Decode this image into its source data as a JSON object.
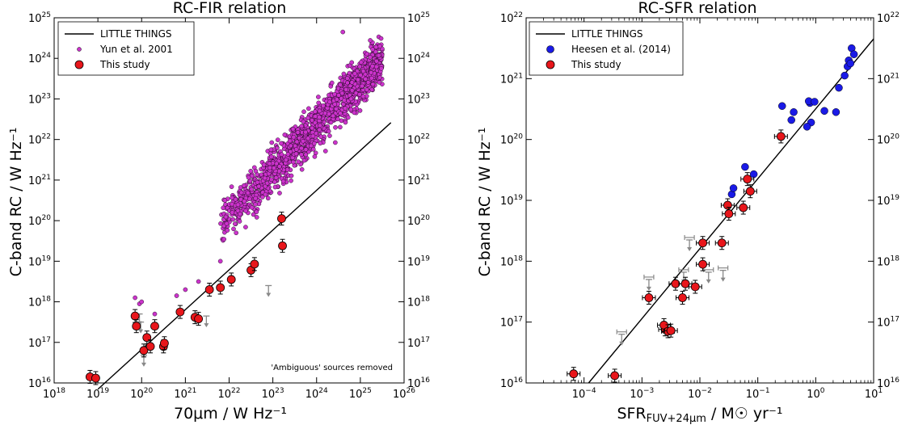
{
  "chart_data": [
    {
      "type": "scatter",
      "title": "RC-FIR relation",
      "xlabel": "70μm  /  W Hz⁻¹",
      "ylabel": "C-band RC  /  W Hz⁻¹",
      "xscale": "log",
      "yscale": "log",
      "xlim": [
        1e+18,
        1e+26
      ],
      "ylim": [
        1e+16,
        1e+25
      ],
      "x_tick_exponents": [
        18,
        19,
        20,
        21,
        22,
        23,
        24,
        25,
        26
      ],
      "y_tick_exponents": [
        16,
        17,
        18,
        19,
        20,
        21,
        22,
        23,
        24,
        25
      ],
      "legend_position": "top-left",
      "legend": [
        {
          "label": "LITTLE THINGS",
          "marker": "line",
          "color": "#000000"
        },
        {
          "label": "Yun et al. 2001",
          "marker": "small-dot",
          "color": "#cc33cc"
        },
        {
          "label": "This study",
          "marker": "dot",
          "color": "#e8161b"
        }
      ],
      "annotation": "'Ambiguous' sources removed",
      "fit_line": {
        "label": "LITTLE THINGS",
        "x": [
          1e+19,
          5e+25
        ],
        "y": [
          7000000000000000.0,
          2.6e+22
        ]
      },
      "yun_cloud": {
        "label": "Yun et al. 2001",
        "color": "#cc33cc",
        "x_log_range": [
          21.8,
          25.5
        ],
        "outliers": [
          [
            19.85,
            18.1
          ],
          [
            19.95,
            17.95
          ],
          [
            20.0,
            18.0
          ],
          [
            20.3,
            17.7
          ],
          [
            20.8,
            18.15
          ],
          [
            21.0,
            18.3
          ],
          [
            21.3,
            18.5
          ],
          [
            21.8,
            19.0
          ],
          [
            22.6,
            20.4
          ],
          [
            23.3,
            21.5
          ],
          [
            24.6,
            24.65
          ]
        ]
      },
      "series": [
        {
          "name": "This study",
          "color": "#e8161b",
          "points": [
            [
              18.82,
              16.15
            ],
            [
              18.95,
              16.12
            ],
            [
              19.85,
              17.65
            ],
            [
              19.88,
              17.4
            ],
            [
              20.05,
              16.8
            ],
            [
              20.12,
              17.12
            ],
            [
              20.2,
              16.9
            ],
            [
              20.3,
              17.4
            ],
            [
              20.5,
              16.9
            ],
            [
              20.52,
              16.98
            ],
            [
              20.88,
              17.75
            ],
            [
              21.22,
              17.62
            ],
            [
              21.3,
              17.58
            ],
            [
              21.55,
              18.3
            ],
            [
              21.8,
              18.35
            ],
            [
              22.05,
              18.55
            ],
            [
              22.5,
              18.78
            ],
            [
              22.58,
              18.93
            ],
            [
              23.2,
              20.05
            ],
            [
              23.22,
              19.38
            ]
          ]
        }
      ],
      "upper_limits": [
        [
          19.95,
          17.7
        ],
        [
          19.98,
          17.5
        ],
        [
          20.05,
          16.68
        ],
        [
          21.48,
          17.65
        ],
        [
          22.9,
          18.4
        ]
      ]
    },
    {
      "type": "scatter",
      "title": "RC-SFR relation",
      "xlabel": "SFR FUV+24μm  /  M☉ yr⁻¹",
      "ylabel": "C-band RC  /  W Hz⁻¹",
      "xscale": "log",
      "yscale": "log",
      "xlim": [
        1e-05,
        10
      ],
      "ylim": [
        1e+16,
        1e+22
      ],
      "x_tick_exponents": [
        -4,
        -3,
        -2,
        -1,
        0,
        1
      ],
      "y_tick_exponents": [
        16,
        17,
        18,
        19,
        20,
        21,
        22
      ],
      "legend_position": "top-left",
      "legend": [
        {
          "label": "LITTLE THINGS",
          "marker": "line",
          "color": "#000000"
        },
        {
          "label": "Heesen et al. (2014)",
          "marker": "dot",
          "color": "#1a1ae6"
        },
        {
          "label": "This study",
          "marker": "dot",
          "color": "#e8161b"
        }
      ],
      "fit_line": {
        "label": "LITTLE THINGS",
        "x": [
          0.00012,
          10
        ],
        "y": [
          1e+16,
          4.5e+21
        ]
      },
      "series": [
        {
          "name": "Heesen et al. (2014)",
          "color": "#1a1ae6",
          "points": [
            [
              -1.45,
              19.1
            ],
            [
              -1.42,
              19.2
            ],
            [
              -1.22,
              19.55
            ],
            [
              -1.07,
              19.43
            ],
            [
              -0.58,
              20.55
            ],
            [
              -0.38,
              20.45
            ],
            [
              -0.42,
              20.32
            ],
            [
              -0.08,
              20.28
            ],
            [
              -0.1,
              20.6
            ],
            [
              -0.12,
              20.63
            ],
            [
              -0.15,
              20.21
            ],
            [
              -0.02,
              20.62
            ],
            [
              0.15,
              20.47
            ],
            [
              0.35,
              20.45
            ],
            [
              0.4,
              20.85
            ],
            [
              0.5,
              21.05
            ],
            [
              0.55,
              21.2
            ],
            [
              0.57,
              21.3
            ],
            [
              0.6,
              21.25
            ],
            [
              0.62,
              21.5
            ],
            [
              0.66,
              21.4
            ]
          ]
        }
      ],
      "red_points": [
        [
          -4.18,
          16.15
        ],
        [
          -3.47,
          16.12
        ],
        [
          -2.88,
          17.4
        ],
        [
          -2.6,
          16.88
        ],
        [
          -2.62,
          16.95
        ],
        [
          -2.55,
          16.85
        ],
        [
          -2.5,
          16.86
        ],
        [
          -2.42,
          17.63
        ],
        [
          -2.3,
          17.4
        ],
        [
          -2.25,
          17.63
        ],
        [
          -2.08,
          17.58
        ],
        [
          -1.95,
          17.95
        ],
        [
          -1.95,
          18.3
        ],
        [
          -1.62,
          18.3
        ],
        [
          -1.52,
          18.92
        ],
        [
          -1.5,
          18.78
        ],
        [
          -1.25,
          18.88
        ],
        [
          -1.18,
          19.35
        ],
        [
          -1.13,
          19.15
        ],
        [
          -0.6,
          20.05
        ]
      ],
      "upper_limits": [
        [
          -3.35,
          16.8
        ],
        [
          -2.88,
          17.7
        ],
        [
          -2.28,
          17.82
        ],
        [
          -1.85,
          17.82
        ],
        [
          -1.6,
          17.85
        ],
        [
          -2.18,
          18.35
        ]
      ]
    }
  ]
}
